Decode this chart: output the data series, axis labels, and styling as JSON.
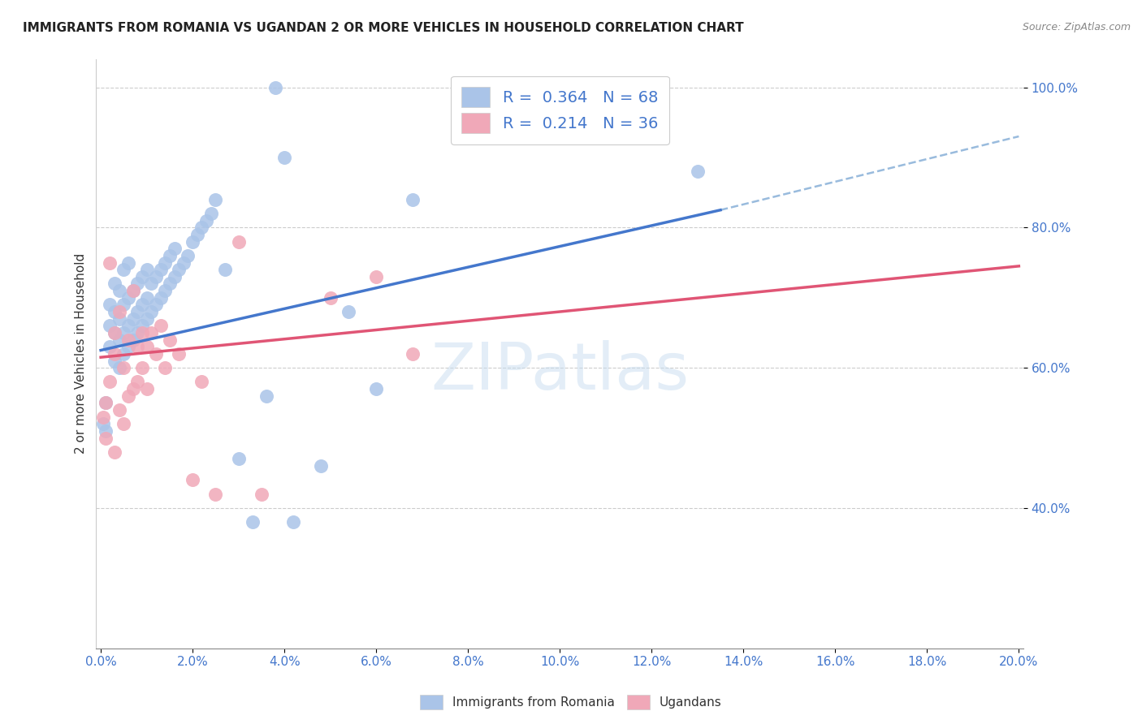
{
  "title": "IMMIGRANTS FROM ROMANIA VS UGANDAN 2 OR MORE VEHICLES IN HOUSEHOLD CORRELATION CHART",
  "source": "Source: ZipAtlas.com",
  "ylabel_label": "2 or more Vehicles in Household",
  "legend_r1": "0.364",
  "legend_n1": "68",
  "legend_r2": "0.214",
  "legend_n2": "36",
  "blue_color": "#aac4e8",
  "pink_color": "#f0a8b8",
  "line_blue": "#4477cc",
  "line_pink": "#e05575",
  "line_dashed_color": "#99bbdd",
  "xlim": [
    0.0,
    0.2
  ],
  "ylim": [
    0.2,
    1.04
  ],
  "x_tick_step": 0.02,
  "y_ticks": [
    0.4,
    0.6,
    0.8,
    1.0
  ],
  "romania_x": [
    0.0005,
    0.001,
    0.001,
    0.002,
    0.002,
    0.002,
    0.003,
    0.003,
    0.003,
    0.003,
    0.004,
    0.004,
    0.004,
    0.004,
    0.005,
    0.005,
    0.005,
    0.005,
    0.006,
    0.006,
    0.006,
    0.006,
    0.007,
    0.007,
    0.007,
    0.008,
    0.008,
    0.008,
    0.009,
    0.009,
    0.009,
    0.01,
    0.01,
    0.01,
    0.011,
    0.011,
    0.012,
    0.012,
    0.013,
    0.013,
    0.014,
    0.014,
    0.015,
    0.015,
    0.016,
    0.016,
    0.017,
    0.018,
    0.019,
    0.02,
    0.021,
    0.022,
    0.023,
    0.024,
    0.025,
    0.027,
    0.03,
    0.033,
    0.036,
    0.038,
    0.04,
    0.042,
    0.048,
    0.054,
    0.06,
    0.068,
    0.085,
    0.13
  ],
  "romania_y": [
    0.52,
    0.51,
    0.55,
    0.63,
    0.66,
    0.69,
    0.61,
    0.65,
    0.68,
    0.72,
    0.6,
    0.64,
    0.67,
    0.71,
    0.62,
    0.65,
    0.69,
    0.74,
    0.63,
    0.66,
    0.7,
    0.75,
    0.64,
    0.67,
    0.71,
    0.65,
    0.68,
    0.72,
    0.66,
    0.69,
    0.73,
    0.67,
    0.7,
    0.74,
    0.68,
    0.72,
    0.69,
    0.73,
    0.7,
    0.74,
    0.71,
    0.75,
    0.72,
    0.76,
    0.73,
    0.77,
    0.74,
    0.75,
    0.76,
    0.78,
    0.79,
    0.8,
    0.81,
    0.82,
    0.84,
    0.74,
    0.47,
    0.38,
    0.56,
    1.0,
    0.9,
    0.38,
    0.46,
    0.68,
    0.57,
    0.84,
    0.96,
    0.88
  ],
  "ugandan_x": [
    0.0005,
    0.001,
    0.001,
    0.002,
    0.002,
    0.003,
    0.003,
    0.003,
    0.004,
    0.004,
    0.005,
    0.005,
    0.006,
    0.006,
    0.007,
    0.007,
    0.008,
    0.008,
    0.009,
    0.009,
    0.01,
    0.01,
    0.011,
    0.012,
    0.013,
    0.014,
    0.015,
    0.017,
    0.02,
    0.022,
    0.025,
    0.03,
    0.035,
    0.05,
    0.06,
    0.068
  ],
  "ugandan_y": [
    0.53,
    0.5,
    0.55,
    0.75,
    0.58,
    0.48,
    0.62,
    0.65,
    0.54,
    0.68,
    0.52,
    0.6,
    0.56,
    0.64,
    0.57,
    0.71,
    0.58,
    0.63,
    0.6,
    0.65,
    0.57,
    0.63,
    0.65,
    0.62,
    0.66,
    0.6,
    0.64,
    0.62,
    0.44,
    0.58,
    0.42,
    0.78,
    0.42,
    0.7,
    0.73,
    0.62
  ],
  "blue_line_x0": 0.0,
  "blue_line_y0": 0.625,
  "blue_line_x1": 0.135,
  "blue_line_y1": 0.825,
  "pink_line_x0": 0.0,
  "pink_line_y0": 0.615,
  "pink_line_x1": 0.2,
  "pink_line_y1": 0.745,
  "dash_line_x0": 0.135,
  "dash_line_y0": 0.825,
  "dash_line_x1": 0.2,
  "dash_line_y1": 0.93,
  "watermark": "ZIPatlas",
  "watermark_color": "#c8ddf0",
  "title_fontsize": 11,
  "source_fontsize": 9,
  "tick_fontsize": 11,
  "ylabel_fontsize": 11,
  "legend_fontsize": 14
}
